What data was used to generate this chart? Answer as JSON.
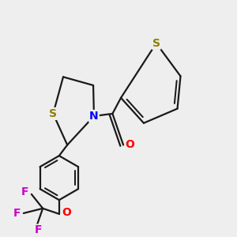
{
  "background_color": "#eeeeee",
  "bond_color": "#1a1a1a",
  "bond_width": 1.6,
  "atom_colors": {
    "S": "#8b8000",
    "N": "#0000ff",
    "O": "#ff0000",
    "F": "#cc00cc"
  },
  "font_size": 10,
  "figsize": [
    3.0,
    3.0
  ],
  "dpi": 100
}
